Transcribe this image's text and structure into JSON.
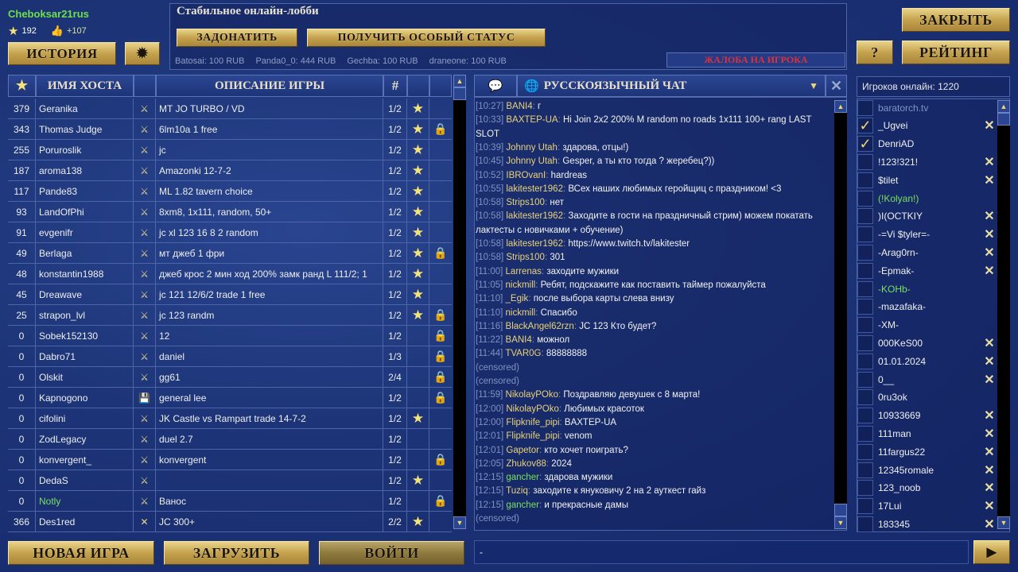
{
  "user": {
    "name": "Cheboksar21rus",
    "stars": "192",
    "likes": "+107"
  },
  "buttons": {
    "history": "ИСТОРИЯ",
    "donate": "ЗАДОНАТИТЬ",
    "special_status": "ПОЛУЧИТЬ ОСОБЫЙ СТАТУС",
    "report": "ЖАЛОБА НА ИГРОКА",
    "close": "ЗАКРЫТЬ",
    "help": "?",
    "rating": "РЕЙТИНГ",
    "new_game": "НОВАЯ ИГРА",
    "load": "ЗАГРУЗИТЬ",
    "join": "ВОЙТИ"
  },
  "lobby": {
    "title": "Стабильное онлайн-лобби",
    "donors": [
      "Batosai: 100 RUB",
      "Panda0_0: 444 RUB",
      "Gechba: 100 RUB",
      "draneone: 100 RUB"
    ]
  },
  "games": {
    "headers": {
      "host": "ИМЯ ХОСТА",
      "desc": "ОПИСАНИЕ ИГРЫ",
      "count": "#"
    },
    "rows": [
      {
        "rating": "379",
        "host": "Geranika",
        "type": "swords",
        "desc": "MT JO TURBO / VD",
        "players": "1/2",
        "star": true,
        "lock": false
      },
      {
        "rating": "343",
        "host": "Thomas Judge",
        "type": "swords",
        "desc": "6lm10a 1 free",
        "players": "1/2",
        "star": true,
        "lock": true
      },
      {
        "rating": "255",
        "host": "Poruroslik",
        "type": "swords",
        "desc": "jc",
        "players": "1/2",
        "star": true,
        "lock": false
      },
      {
        "rating": "187",
        "host": "aroma138",
        "type": "swords",
        "desc": "Amazonki 12-7-2",
        "players": "1/2",
        "star": true,
        "lock": false
      },
      {
        "rating": "117",
        "host": "Pande83",
        "type": "swords",
        "desc": "ML 1.82 tavern choice",
        "players": "1/2",
        "star": true,
        "lock": false
      },
      {
        "rating": "93",
        "host": "LandOfPhi",
        "type": "swords",
        "desc": "8xm8, 1x111, random, 50+",
        "players": "1/2",
        "star": true,
        "lock": false
      },
      {
        "rating": "91",
        "host": "evgenifr",
        "type": "swords",
        "desc": "jc xl 123 16 8 2 random",
        "players": "1/2",
        "star": true,
        "lock": false
      },
      {
        "rating": "49",
        "host": "Berlaga",
        "type": "swords",
        "desc": "мт джеб 1 фри",
        "players": "1/2",
        "star": true,
        "lock": true
      },
      {
        "rating": "48",
        "host": "konstantin1988",
        "type": "swords",
        "desc": "джеб крос 2 мин ход 200% замк ранд L 111/2; 1",
        "players": "1/2",
        "star": true,
        "lock": false
      },
      {
        "rating": "45",
        "host": "Dreawave",
        "type": "swords",
        "desc": "jc 121 12/6/2 trade 1 free",
        "players": "1/2",
        "star": true,
        "lock": false
      },
      {
        "rating": "25",
        "host": "strapon_lvl",
        "type": "swords",
        "desc": "jc 123 randm",
        "players": "1/2",
        "star": true,
        "lock": true
      },
      {
        "rating": "0",
        "host": "Sobek152130",
        "type": "swords",
        "desc": "12",
        "players": "1/2",
        "star": false,
        "lock": true
      },
      {
        "rating": "0",
        "host": "Dabro71",
        "type": "swords",
        "desc": "daniel",
        "players": "1/3",
        "star": false,
        "lock": true
      },
      {
        "rating": "0",
        "host": "Olskit",
        "type": "swords",
        "desc": "gg61",
        "players": "2/4",
        "star": false,
        "lock": true
      },
      {
        "rating": "0",
        "host": "Kapnogono",
        "type": "save",
        "desc": "general lee",
        "players": "1/2",
        "star": false,
        "lock": true
      },
      {
        "rating": "0",
        "host": "cifolini",
        "type": "swords",
        "desc": "JK Castle vs Rampart trade 14-7-2",
        "players": "1/2",
        "star": true,
        "lock": false
      },
      {
        "rating": "0",
        "host": "ZodLegacy",
        "type": "swords",
        "desc": "duel 2.7",
        "players": "1/2",
        "star": false,
        "lock": false
      },
      {
        "rating": "0",
        "host": "konvergent_",
        "type": "swords",
        "desc": "konvergent",
        "players": "1/2",
        "star": false,
        "lock": true
      },
      {
        "rating": "0",
        "host": "DedaS",
        "type": "swords",
        "desc": "",
        "players": "1/2",
        "star": true,
        "lock": false
      },
      {
        "rating": "0",
        "host": "Notly",
        "type": "swords",
        "desc": "Ванос",
        "players": "1/2",
        "star": false,
        "lock": true,
        "green": true
      },
      {
        "rating": "366",
        "host": "Des1red",
        "type": "crossed",
        "desc": "JC 300+",
        "players": "2/2",
        "star": true,
        "lock": false
      }
    ]
  },
  "chat": {
    "title": "РУССКОЯЗЫЧНЫЙ ЧАТ",
    "input_value": "-",
    "messages": [
      {
        "time": "[10:27]",
        "name": "BANI4",
        "text": "г"
      },
      {
        "time": "[10:33]",
        "name": "BAXTEP-UA",
        "text": "Hi Join 2x2 200% M random no roads 1x111 100+ rang LAST SLOT",
        "lines": 2
      },
      {
        "time": "[10:39]",
        "name": "Johnny Utah",
        "text": "здарова, отцы!)"
      },
      {
        "time": "[10:45]",
        "name": "Johnny Utah",
        "text": "Gesper, а ты кто тогда ? жеребец?))"
      },
      {
        "time": "[10:52]",
        "name": "IBROvanI",
        "text": "hardreas"
      },
      {
        "time": "[10:55]",
        "name": "lakitester1962",
        "text": "ВСех наших любимых геройщиц с праздником! <3"
      },
      {
        "time": "[10:58]",
        "name": "Strips100",
        "text": "нет"
      },
      {
        "time": "[10:58]",
        "name": "lakitester1962",
        "text": "Заходите в гости на праздничный стрим) можем покатать лактесты с новичками + обучение)",
        "lines": 2
      },
      {
        "time": "[10:58]",
        "name": "lakitester1962",
        "text": "https://www.twitch.tv/lakitester"
      },
      {
        "time": "[10:58]",
        "name": "Strips100",
        "text": "301"
      },
      {
        "time": "[11:00]",
        "name": "Larrenas",
        "text": "заходите мужики"
      },
      {
        "time": "[11:05]",
        "name": "nickmill",
        "text": "Ребят, подскажите как поставить таймер пожалуйста"
      },
      {
        "time": "[11:10]",
        "name": "_Egik",
        "text": "после выбора карты слева внизу"
      },
      {
        "time": "[11:10]",
        "name": "nickmill",
        "text": "Спасибо"
      },
      {
        "time": "[11:16]",
        "name": "BlackAngel62rzn",
        "text": "JC 123 Кто будет?"
      },
      {
        "time": "[11:22]",
        "name": "BANI4",
        "text": "можнол"
      },
      {
        "time": "[11:44]",
        "name": "TVAR0G",
        "text": "88888888"
      },
      {
        "censored": "(censored)"
      },
      {
        "censored": "(censored)"
      },
      {
        "time": "[11:59]",
        "name": "NikolayPOko",
        "text": "Поздравляю девушек с 8 марта!"
      },
      {
        "time": "[12:00]",
        "name": "NikolayPOko",
        "text": "Любимых красоток"
      },
      {
        "time": "[12:00]",
        "name": "Flipknife_pipi",
        "text": "BAXTEP-UA"
      },
      {
        "time": "[12:01]",
        "name": "Flipknife_pipi",
        "text": "venom"
      },
      {
        "time": "[12:01]",
        "name": "Gapetor",
        "text": "кто хочет поиграть?"
      },
      {
        "time": "[12:05]",
        "name": "Zhukov88",
        "text": "2024"
      },
      {
        "time": "[12:15]",
        "name": "gancher",
        "text": "здарова мужики",
        "green": true
      },
      {
        "time": "[12:15]",
        "name": "Tuziq",
        "text": "заходите к януковичу 2 на 2 ауткест гайз"
      },
      {
        "time": "[12:15]",
        "name": "gancher",
        "text": "и прекрасные дамы",
        "green": true
      },
      {
        "censored": "(censored)"
      }
    ]
  },
  "players": {
    "online_label": "Игроков онлайн: 1220",
    "list": [
      {
        "name": "baratorch.tv",
        "checked": false,
        "x": false,
        "style": "dim"
      },
      {
        "name": "_Ugvei",
        "checked": true,
        "x": true
      },
      {
        "name": "DenriAD",
        "checked": true,
        "x": false
      },
      {
        "name": "!123!321!",
        "checked": false,
        "x": true
      },
      {
        "name": "$tilet",
        "checked": false,
        "x": true
      },
      {
        "name": "(!Kolyan!)",
        "checked": false,
        "x": false,
        "style": "green"
      },
      {
        "name": ")I(OCTKIY",
        "checked": false,
        "x": true
      },
      {
        "name": "-=Vi $tyler=-",
        "checked": false,
        "x": true
      },
      {
        "name": "-Arag0rn-",
        "checked": false,
        "x": true
      },
      {
        "name": "-Epmak-",
        "checked": false,
        "x": true
      },
      {
        "name": "-KOHb-",
        "checked": false,
        "x": false,
        "style": "green"
      },
      {
        "name": "-mazafaka-",
        "checked": false,
        "x": false
      },
      {
        "name": "-XM-",
        "checked": false,
        "x": false
      },
      {
        "name": "000KeS00",
        "checked": false,
        "x": true
      },
      {
        "name": "01.01.2024",
        "checked": false,
        "x": true
      },
      {
        "name": "0__",
        "checked": false,
        "x": true
      },
      {
        "name": "0ru3ok",
        "checked": false,
        "x": false
      },
      {
        "name": "10933669",
        "checked": false,
        "x": true
      },
      {
        "name": "111man",
        "checked": false,
        "x": true
      },
      {
        "name": "11fargus22",
        "checked": false,
        "x": true
      },
      {
        "name": "12345romale",
        "checked": false,
        "x": true
      },
      {
        "name": "123_noob",
        "checked": false,
        "x": true
      },
      {
        "name": "17Lui",
        "checked": false,
        "x": true
      },
      {
        "name": "183345",
        "checked": false,
        "x": true
      }
    ]
  },
  "colors": {
    "gold": "#c4a24e",
    "name": "#e8d27a",
    "green": "#78e060",
    "time": "#7f93c4",
    "report": "#e0303a"
  }
}
